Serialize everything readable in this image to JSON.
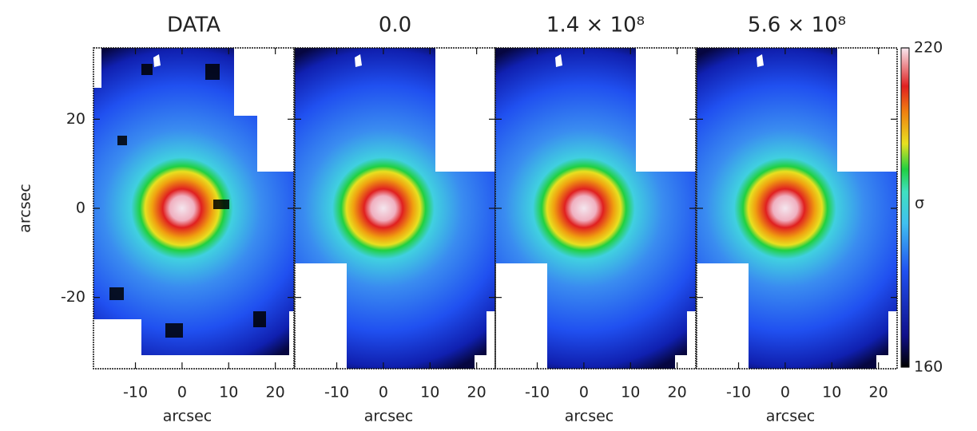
{
  "chart_data": [
    {
      "type": "image",
      "title": "DATA",
      "xlabel": "arcsec",
      "ylabel": "arcsec",
      "xlim": [
        -19,
        24
      ],
      "xticks": [
        -10,
        0,
        10,
        20
      ],
      "ylim": [
        -36,
        36
      ],
      "yticks": [
        -20,
        0,
        20
      ]
    },
    {
      "type": "image",
      "title": "0.0",
      "xlabel": "arcsec",
      "xlim": [
        -19,
        24
      ],
      "xticks": [
        -10,
        0,
        10,
        20
      ],
      "ylim": [
        -36,
        36
      ]
    },
    {
      "type": "image",
      "title": "1.4 × 10⁸",
      "xlabel": "arcsec",
      "xlim": [
        -19,
        24
      ],
      "xticks": [
        -10,
        0,
        10,
        20
      ],
      "ylim": [
        -36,
        36
      ]
    },
    {
      "type": "image",
      "title": "5.6 × 10⁸",
      "xlabel": "arcsec",
      "xlim": [
        -19,
        24
      ],
      "xticks": [
        -10,
        0,
        10,
        20
      ],
      "ylim": [
        -36,
        36
      ]
    }
  ],
  "colorbar": {
    "label": "σ",
    "lim": [
      160,
      220
    ],
    "ticks": [
      160,
      220
    ]
  }
}
